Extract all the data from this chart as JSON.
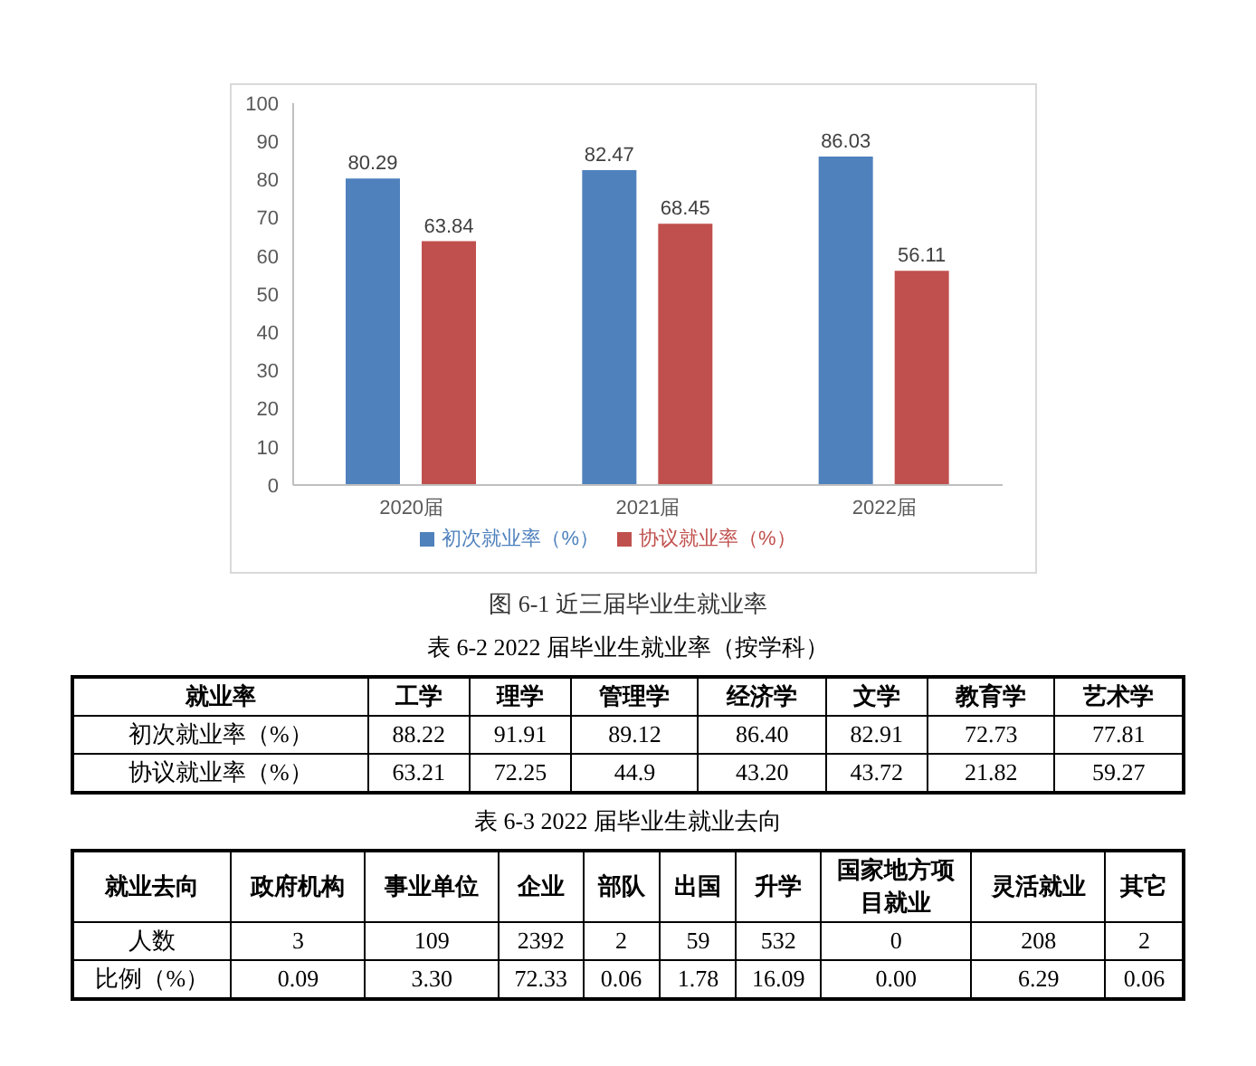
{
  "chart_data": [
    {
      "type": "bar",
      "categories": [
        "2020届",
        "2021届",
        "2022届"
      ],
      "series": [
        {
          "name": "初次就业率（%）",
          "color": "#4f81bd",
          "values": [
            80.29,
            82.47,
            86.03
          ]
        },
        {
          "name": "协议就业率（%）",
          "color": "#c0504d",
          "values": [
            63.84,
            68.45,
            56.11
          ]
        }
      ],
      "ylim": [
        0,
        100
      ],
      "yticks": [
        0,
        10,
        20,
        30,
        40,
        50,
        60,
        70,
        80,
        90,
        100
      ],
      "grid": false,
      "legend": "bottom",
      "data_labels": true,
      "annotations": [
        "图 6-1  近三届毕业生就业率"
      ]
    },
    {
      "type": "other",
      "title": "表 6-2 2022 届毕业生就业率（按学科）",
      "annotations": [
        "就业率"
      ],
      "categories": [
        "工学",
        "理学",
        "管理学",
        "经济学",
        "文学",
        "教育学",
        "艺术学"
      ],
      "y_categories": [
        "初次就业率（%）",
        "协议就业率（%）"
      ],
      "cell_labels": [
        [
          "88.22",
          "91.91",
          "89.12",
          "86.40",
          "82.91",
          "72.73",
          "77.81"
        ],
        [
          "63.21",
          "72.25",
          "44.9",
          "43.20",
          "43.72",
          "21.82",
          "59.27"
        ]
      ]
    },
    {
      "type": "other",
      "title": "表 6-3 2022 届毕业生就业去向",
      "annotations": [
        "就业去向"
      ],
      "categories": [
        "政府机构",
        "事业单位",
        "企业",
        "部队",
        "出国",
        "升学",
        "国家地方项目就业",
        "灵活就业",
        "其它"
      ],
      "y_categories": [
        "人数",
        "比例（%）"
      ],
      "cell_labels": [
        [
          "3",
          "109",
          "2392",
          "2",
          "59",
          "532",
          "0",
          "208",
          "2"
        ],
        [
          "0.09",
          "3.30",
          "72.33",
          "0.06",
          "1.78",
          "16.09",
          "0.00",
          "6.29",
          "0.06"
        ]
      ]
    }
  ]
}
